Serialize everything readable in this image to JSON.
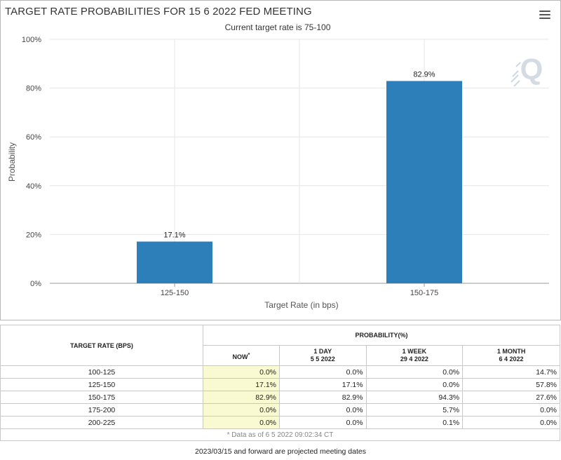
{
  "chart": {
    "title": "TARGET RATE PROBABILITIES FOR 15 6 2022 FED MEETING",
    "subtitle": "Current target rate is 75-100",
    "menu_icon": "hamburger-menu-icon",
    "watermark_icon": "q-logo-icon"
  },
  "chart_data": {
    "type": "bar",
    "categories": [
      "125-150",
      "150-175"
    ],
    "values": [
      17.1,
      82.9
    ],
    "data_labels": [
      "17.1%",
      "82.9%"
    ],
    "xlabel": "Target Rate (in bps)",
    "ylabel": "Probability",
    "ylim": [
      0,
      100
    ],
    "yticks": [
      "0%",
      "20%",
      "40%",
      "60%",
      "80%",
      "100%"
    ],
    "grid": true,
    "bar_color": "#2c7fb8"
  },
  "table": {
    "rate_header": "TARGET RATE (BPS)",
    "probability_header": "PROBABILITY(%)",
    "columns": [
      {
        "label": "NOW",
        "sup": "*",
        "date": ""
      },
      {
        "label": "1 DAY",
        "sup": "",
        "date": "5 5 2022"
      },
      {
        "label": "1 WEEK",
        "sup": "",
        "date": "29 4 2022"
      },
      {
        "label": "1 MONTH",
        "sup": "",
        "date": "6 4 2022"
      }
    ],
    "rows": [
      {
        "rate": "100-125",
        "values": [
          "0.0%",
          "0.0%",
          "0.0%",
          "14.7%"
        ]
      },
      {
        "rate": "125-150",
        "values": [
          "17.1%",
          "17.1%",
          "0.0%",
          "57.8%"
        ]
      },
      {
        "rate": "150-175",
        "values": [
          "82.9%",
          "82.9%",
          "94.3%",
          "27.6%"
        ]
      },
      {
        "rate": "175-200",
        "values": [
          "0.0%",
          "0.0%",
          "5.7%",
          "0.0%"
        ]
      },
      {
        "rate": "200-225",
        "values": [
          "0.0%",
          "0.0%",
          "0.1%",
          "0.0%"
        ]
      }
    ],
    "footnote": "* Data as of 6 5 2022 09:02:34 CT"
  },
  "bottom_note": "2023/03/15 and forward are projected meeting dates"
}
